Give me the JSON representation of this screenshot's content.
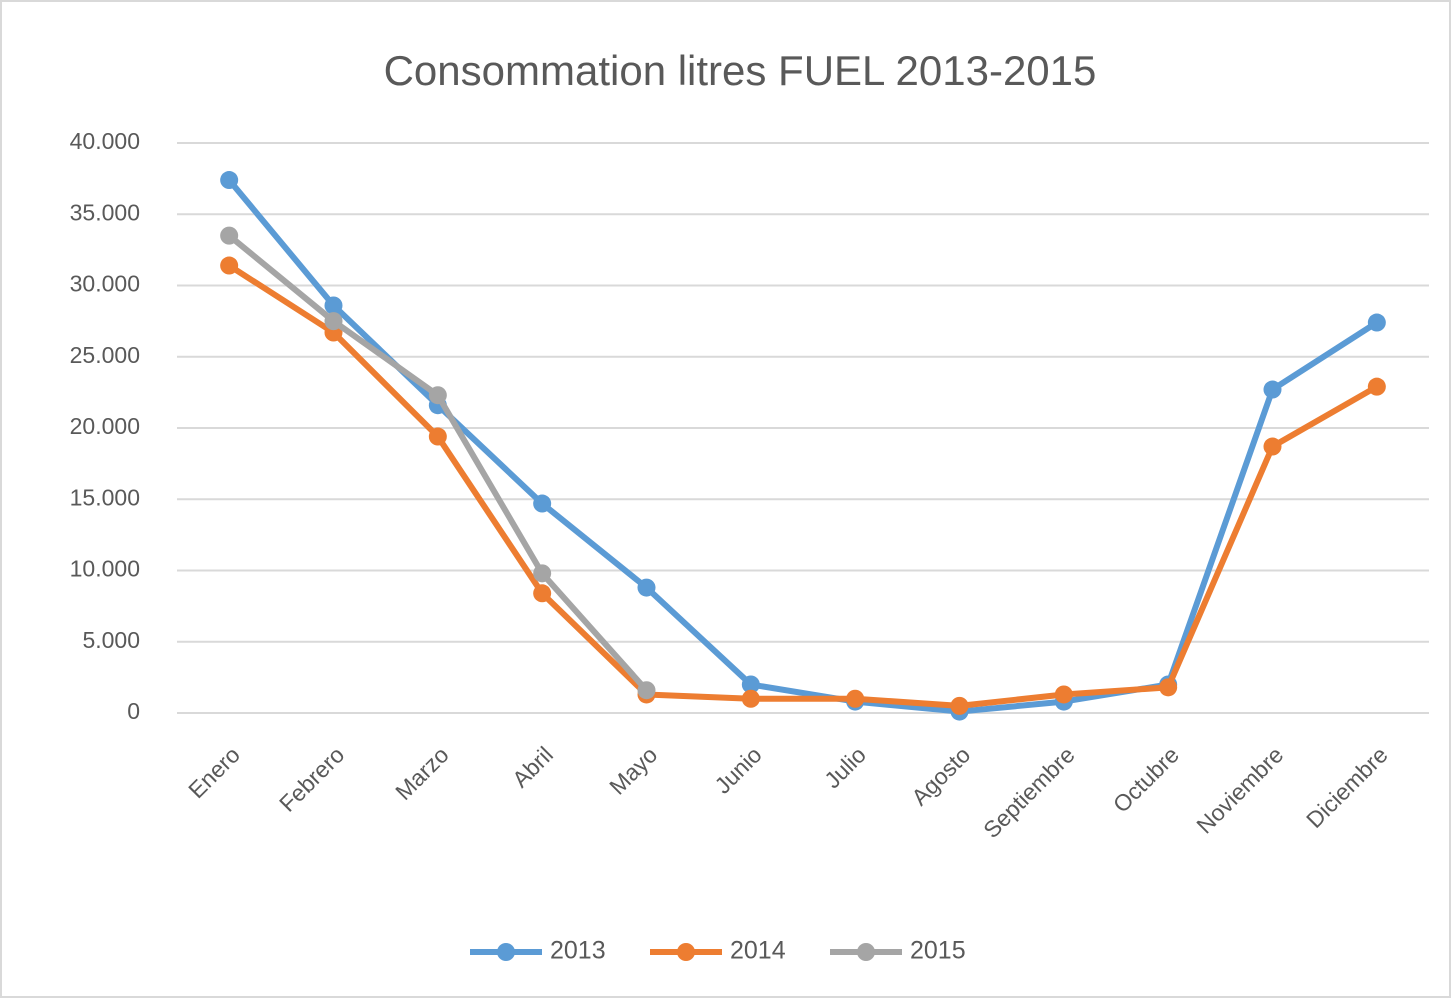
{
  "chart_data": {
    "type": "line",
    "title": "Consommation litres FUEL 2013-2015",
    "categories": [
      "Enero",
      "Febrero",
      "Marzo",
      "Abril",
      "Mayo",
      "Junio",
      "Julio",
      "Agosto",
      "Septiembre",
      "Octubre",
      "Noviembre",
      "Diciembre"
    ],
    "series": [
      {
        "name": "2013",
        "color": "#5b9bd5",
        "values": [
          37400,
          28600,
          21600,
          14700,
          8800,
          2000,
          800,
          100,
          800,
          2000,
          22700,
          27400
        ]
      },
      {
        "name": "2014",
        "color": "#ed7d31",
        "values": [
          31400,
          26700,
          19400,
          8400,
          1300,
          1000,
          1000,
          500,
          1300,
          1800,
          18700,
          22900
        ]
      },
      {
        "name": "2015",
        "color": "#a5a5a5",
        "values": [
          33500,
          27500,
          22300,
          9800,
          1600,
          null,
          null,
          null,
          null,
          null,
          null,
          null
        ]
      }
    ],
    "ylim": [
      0,
      40000
    ],
    "yticks": [
      0,
      {
        "value": 5000,
        "label": "5.000"
      },
      {
        "value": 10000,
        "label": "10.000"
      },
      {
        "value": 15000,
        "label": "15.000"
      },
      {
        "value": 20000,
        "label": "20.000"
      },
      {
        "value": 25000,
        "label": "25.000"
      },
      {
        "value": 30000,
        "label": "30.000"
      },
      {
        "value": 35000,
        "label": "35.000"
      },
      {
        "value": 40000,
        "label": "40.000"
      }
    ],
    "grid": true,
    "legend": "bottom"
  }
}
